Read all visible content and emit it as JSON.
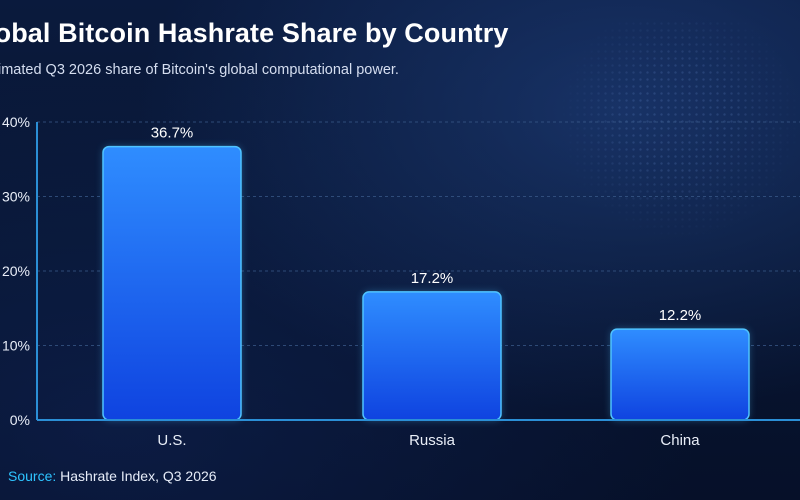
{
  "title": "lobal Bitcoin Hashrate Share by Country",
  "subtitle": "imated Q3 2026 share of Bitcoin's global computational power.",
  "source": {
    "label": "Source:",
    "text": "Hashrate Index, Q3 2026"
  },
  "colors": {
    "background": "#06112b",
    "bar_top": "#2f8dff",
    "bar_bottom": "#0f43e0",
    "bar_edge": "#4fc3ff",
    "axis": "#2b8fd6",
    "grid": "#3a5a8a",
    "accent": "#2ec4ff"
  },
  "chart_data": {
    "type": "bar",
    "title": "lobal Bitcoin Hashrate Share by Country",
    "subtitle": "imated Q3 2026 share of Bitcoin's global computational power.",
    "categories": [
      "U.S.",
      "Russia",
      "China"
    ],
    "values": [
      36.7,
      17.2,
      12.2
    ],
    "value_labels": [
      "36.7%",
      "17.2%",
      "12.2%"
    ],
    "xlabel": "",
    "ylabel": "",
    "ylim": [
      0,
      40
    ],
    "yticks": [
      0,
      10,
      20,
      30,
      40
    ],
    "ytick_labels": [
      "0%",
      "10%",
      "20%",
      "30%",
      "40%"
    ],
    "grid": true,
    "legend": "none"
  }
}
